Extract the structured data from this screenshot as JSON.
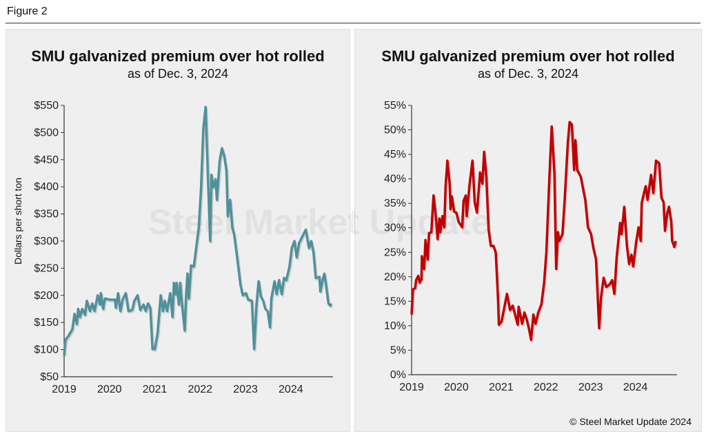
{
  "figure_label": "Figure 2",
  "copyright": "© Steel Market Update 2024",
  "watermark": "Steel Market Update",
  "chart_data": [
    {
      "type": "line",
      "title": "SMU galvanized premium over hot rolled",
      "subtitle": "as of Dec. 3, 2024",
      "xlabel": "",
      "ylabel": "Dollars per short ton",
      "xlim": [
        2019,
        2024.93
      ],
      "ylim": [
        50,
        550
      ],
      "x_ticks": [
        2019,
        2020,
        2021,
        2022,
        2023,
        2024
      ],
      "x_tick_labels": [
        "2019",
        "2020",
        "2021",
        "2022",
        "2023",
        "2024"
      ],
      "y_ticks": [
        50,
        100,
        150,
        200,
        250,
        300,
        350,
        400,
        450,
        500,
        550
      ],
      "y_tick_labels": [
        "$50",
        "$100",
        "$150",
        "$200",
        "$250",
        "$300",
        "$350",
        "$400",
        "$450",
        "$500",
        "$550"
      ],
      "color": "#4f919b",
      "x": [
        2019.0,
        2019.03,
        2019.1,
        2019.18,
        2019.23,
        2019.28,
        2019.31,
        2019.35,
        2019.4,
        2019.46,
        2019.5,
        2019.57,
        2019.62,
        2019.67,
        2019.74,
        2019.79,
        2019.81,
        2019.86,
        2019.9,
        2020.02,
        2020.12,
        2020.14,
        2020.19,
        2020.24,
        2020.29,
        2020.36,
        2020.42,
        2020.5,
        2020.55,
        2020.62,
        2020.68,
        2020.75,
        2020.8,
        2020.85,
        2020.9,
        2020.95,
        2021.0,
        2021.06,
        2021.13,
        2021.18,
        2021.22,
        2021.27,
        2021.31,
        2021.34,
        2021.39,
        2021.42,
        2021.46,
        2021.48,
        2021.53,
        2021.56,
        2021.6,
        2021.66,
        2021.69,
        2021.72,
        2021.75,
        2021.8,
        2021.86,
        2021.97,
        2022.02,
        2022.07,
        2022.12,
        2022.17,
        2022.22,
        2022.25,
        2022.29,
        2022.34,
        2022.37,
        2022.43,
        2022.48,
        2022.53,
        2022.58,
        2022.61,
        2022.66,
        2022.71,
        2022.75,
        2022.81,
        2022.89,
        2022.94,
        2023.01,
        2023.06,
        2023.14,
        2023.19,
        2023.24,
        2023.29,
        2023.34,
        2023.39,
        2023.44,
        2023.49,
        2023.54,
        2023.57,
        2023.64,
        2023.69,
        2023.74,
        2023.8,
        2023.85,
        2023.9,
        2023.97,
        2024.02,
        2024.08,
        2024.13,
        2024.18,
        2024.25,
        2024.33,
        2024.4,
        2024.45,
        2024.5,
        2024.55,
        2024.63,
        2024.65,
        2024.7,
        2024.74,
        2024.77,
        2024.83,
        2024.87,
        2024.89
      ],
      "values": [
        90,
        118,
        126,
        137,
        166,
        147,
        175,
        160,
        175,
        164,
        190,
        171,
        185,
        171,
        200,
        183,
        204,
        175,
        194,
        192,
        192,
        177,
        204,
        171,
        192,
        204,
        171,
        173,
        190,
        200,
        173,
        183,
        171,
        185,
        177,
        101,
        101,
        130,
        200,
        171,
        190,
        171,
        190,
        204,
        160,
        223,
        202,
        223,
        183,
        223,
        183,
        135,
        200,
        240,
        194,
        255,
        253,
        325,
        397,
        507,
        547,
        422,
        300,
        422,
        399,
        414,
        376,
        448,
        471,
        457,
        431,
        346,
        376,
        325,
        312,
        274,
        219,
        200,
        204,
        192,
        190,
        101,
        181,
        226,
        198,
        190,
        175,
        171,
        141,
        194,
        226,
        202,
        228,
        202,
        232,
        228,
        253,
        287,
        300,
        270,
        296,
        308,
        321,
        287,
        300,
        279,
        232,
        234,
        207,
        228,
        240,
        223,
        185,
        181,
        185
      ]
    },
    {
      "type": "line",
      "title": "SMU galvanized premium over hot rolled",
      "subtitle": "as of Dec. 3, 2024",
      "xlabel": "",
      "ylabel": "",
      "xlim": [
        2019,
        2024.93
      ],
      "ylim": [
        0,
        55
      ],
      "x_ticks": [
        2019,
        2020,
        2021,
        2022,
        2023,
        2024
      ],
      "x_tick_labels": [
        "2019",
        "2020",
        "2021",
        "2022",
        "2023",
        "2024"
      ],
      "y_ticks": [
        0,
        5,
        10,
        15,
        20,
        25,
        30,
        35,
        40,
        45,
        50,
        55
      ],
      "y_tick_labels": [
        "0%",
        "5%",
        "10%",
        "15%",
        "20%",
        "25%",
        "30%",
        "35%",
        "40%",
        "45%",
        "50%",
        "55%"
      ],
      "color": "#c00000",
      "x": [
        2019.0,
        2019.03,
        2019.08,
        2019.1,
        2019.15,
        2019.18,
        2019.22,
        2019.23,
        2019.28,
        2019.31,
        2019.36,
        2019.39,
        2019.44,
        2019.49,
        2019.54,
        2019.58,
        2019.62,
        2019.64,
        2019.69,
        2019.73,
        2019.76,
        2019.8,
        2019.85,
        2019.87,
        2019.9,
        2019.95,
        2020.0,
        2020.05,
        2020.13,
        2020.16,
        2020.21,
        2020.23,
        2020.29,
        2020.36,
        2020.41,
        2020.46,
        2020.53,
        2020.58,
        2020.62,
        2020.67,
        2020.72,
        2020.77,
        2020.83,
        2020.88,
        2020.93,
        2020.95,
        2021.01,
        2021.06,
        2021.13,
        2021.2,
        2021.26,
        2021.31,
        2021.37,
        2021.39,
        2021.47,
        2021.52,
        2021.57,
        2021.62,
        2021.67,
        2021.72,
        2021.77,
        2021.83,
        2021.9,
        2021.96,
        2022.01,
        2022.08,
        2022.13,
        2022.19,
        2022.23,
        2022.27,
        2022.3,
        2022.37,
        2022.42,
        2022.49,
        2022.53,
        2022.58,
        2022.63,
        2022.66,
        2022.7,
        2022.78,
        2022.83,
        2022.88,
        2022.94,
        2023.01,
        2023.06,
        2023.12,
        2023.19,
        2023.23,
        2023.29,
        2023.35,
        2023.42,
        2023.48,
        2023.53,
        2023.58,
        2023.66,
        2023.69,
        2023.75,
        2023.81,
        2023.86,
        2023.91,
        2023.95,
        2024.02,
        2024.07,
        2024.12,
        2024.14,
        2024.19,
        2024.23,
        2024.27,
        2024.35,
        2024.4,
        2024.46,
        2024.53,
        2024.58,
        2024.63,
        2024.66,
        2024.71,
        2024.75,
        2024.8,
        2024.82,
        2024.87,
        2024.9
      ],
      "values": [
        12.3,
        17.4,
        17.7,
        19.3,
        20.2,
        18.8,
        19.5,
        24.2,
        21.6,
        27.5,
        23.5,
        28.9,
        29.1,
        36.6,
        32.4,
        27.7,
        31.9,
        29.1,
        32.4,
        30.1,
        38.5,
        43.7,
        39,
        33.8,
        36.4,
        33.3,
        33.1,
        31.2,
        30.1,
        35.5,
        36.6,
        32.4,
        38.5,
        43.7,
        35.2,
        33.1,
        41.3,
        39,
        45.5,
        40.4,
        29.6,
        26.3,
        26.3,
        24.9,
        15.6,
        10.2,
        10.9,
        13.2,
        16.5,
        13.2,
        14.1,
        12.3,
        10.2,
        13.9,
        10.4,
        12.7,
        11.3,
        9.5,
        7.1,
        12.3,
        10.4,
        12.7,
        14.4,
        18.8,
        24.9,
        40.8,
        50.7,
        41.3,
        21.6,
        29.1,
        27.3,
        28.7,
        35.7,
        47.4,
        51.6,
        51.1,
        41.8,
        47.9,
        41.8,
        40.4,
        38,
        35.7,
        30.1,
        28.7,
        25.9,
        23.5,
        9.5,
        15.6,
        19.8,
        17.9,
        18.4,
        19.3,
        16.5,
        24,
        31,
        28.7,
        34.3,
        26.3,
        22.6,
        24.5,
        22.1,
        27.3,
        30.1,
        27.3,
        35,
        37.1,
        38.5,
        35.7,
        40.8,
        37.1,
        43.7,
        43.2,
        36.2,
        35.2,
        29.4,
        32.9,
        34.3,
        31.2,
        27.3,
        26.1,
        27.3
      ]
    }
  ]
}
